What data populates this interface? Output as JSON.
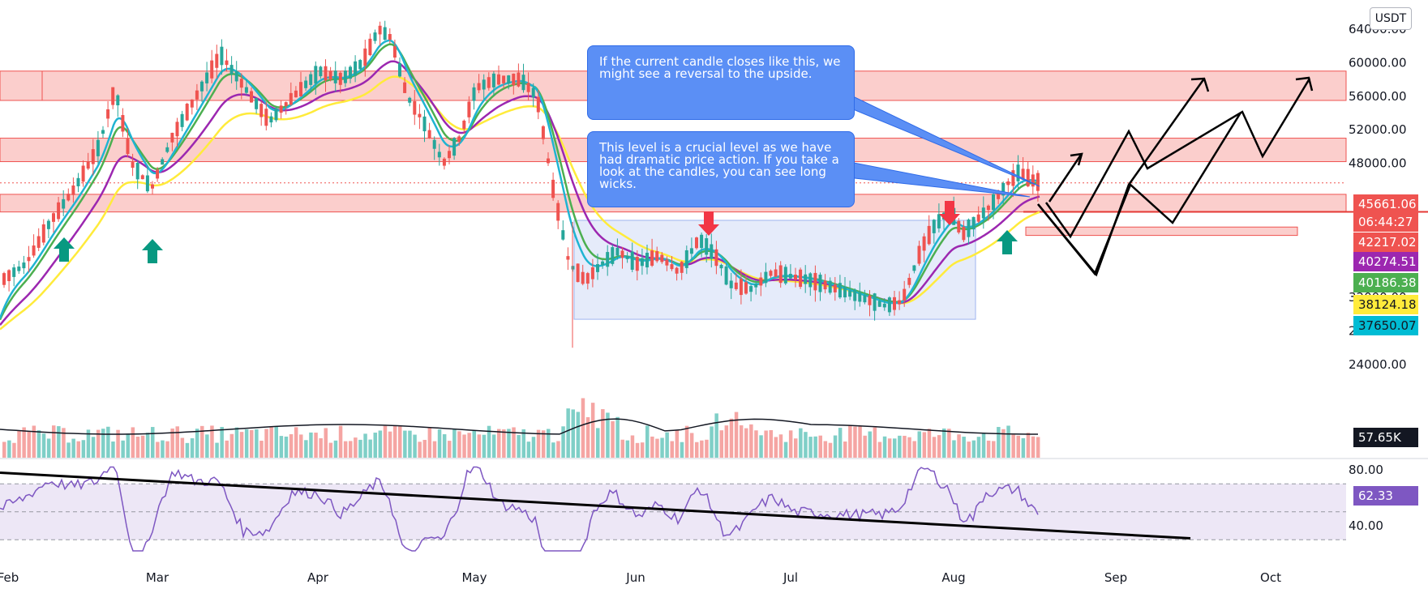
{
  "header": {
    "currency": "USDT"
  },
  "colors": {
    "up": "#26a69a",
    "down": "#ef5350",
    "ema_blue": "#1fb4d2",
    "ema_green": "#4caf50",
    "ema_yellow": "#ffeb3b",
    "ema_purple": "#9c27b0",
    "zone_fill": "#f9b9b7",
    "range_fill": "#c6d3f5",
    "rsi_band": "#ede7f6",
    "rsi_line": "#7e57c2",
    "arrow_up": "#089981",
    "arrow_down": "#f23645",
    "callout_bg": "#5b8ff5"
  },
  "annotations": {
    "callout_1": "If the current candle closes like this, we might see a reversal to the upside.",
    "callout_2": "This level is a crucial level as we have had dramatic price action. If you take a look at the candles, you can see long wicks."
  },
  "price_axis": {
    "ticks": [
      "64000.00",
      "60000.00",
      "56000.00",
      "52000.00",
      "48000.00",
      "32000.00",
      "28000.00",
      "24000.00"
    ]
  },
  "rsi_axis": {
    "ticks": [
      "80.00",
      "40.00"
    ]
  },
  "badges": {
    "price": "45661.06",
    "countdown": "06:44:27",
    "level": "42217.02",
    "ema_purple": "40274.51",
    "ema_green": "40186.38",
    "ema_yellow": "38124.18",
    "ema_blue": "37650.07",
    "volume": "57.65K",
    "rsi": "62.33"
  },
  "chart_data": {
    "type": "candlestick",
    "symbol_quote": "USDT",
    "time_axis": [
      "Feb",
      "Mar",
      "Apr",
      "May",
      "Jun",
      "Jul",
      "Aug",
      "Sep",
      "Oct"
    ],
    "ylim": [
      26000,
      66000
    ],
    "support_resistance_zones": [
      [
        55500,
        59000
      ],
      [
        48200,
        51000
      ],
      [
        42200,
        44300
      ],
      [
        39400,
        40400
      ]
    ],
    "range_box": {
      "from": "2021-05-19",
      "to": "2021-08-02",
      "low": 29400,
      "high": 41200
    },
    "key_level": 42217.02,
    "series": [
      {
        "name": "",
        "values_at_months": {
          "Feb": 33000,
          "Mar": 46000,
          "Apr": 57000,
          "May": 57000,
          "Jun": 37000,
          "Jul": 34000,
          "Aug": 41000
        },
        "last": 45661.06
      },
      {
        "name": "",
        "last": 37650.07
      },
      {
        "name": "",
        "last": 40186.38
      },
      {
        "name": "",
        "last": 38124.18
      },
      {
        "name": "",
        "last": 40274.51
      }
    ],
    "volume_last": "57.65K",
    "rsi_last": 62.33,
    "rsi_levels": [
      70,
      50,
      30
    ]
  }
}
